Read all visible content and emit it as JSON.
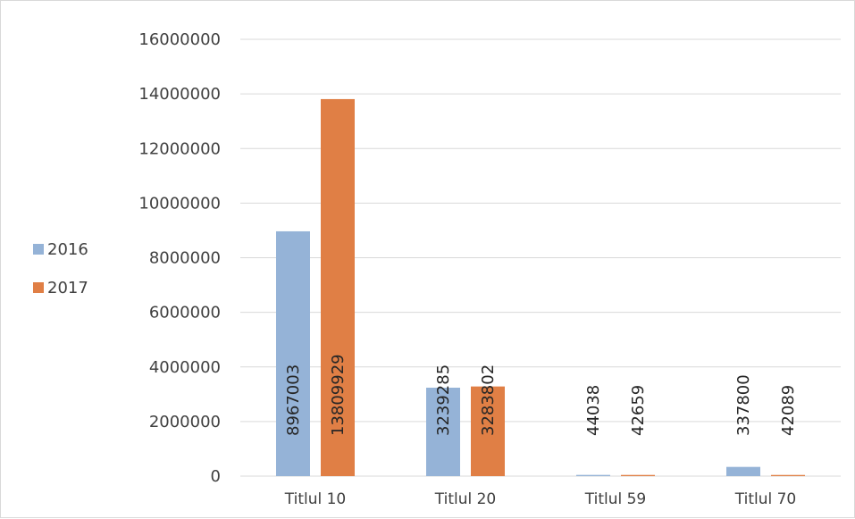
{
  "chart_data": {
    "type": "bar",
    "categories": [
      "Titlul 10",
      "Titlul 20",
      "Titlul 59",
      "Titlul 70"
    ],
    "series": [
      {
        "name": "2016",
        "color": "#95b3d7",
        "values": [
          8967003,
          3239285,
          44038,
          337800
        ]
      },
      {
        "name": "2017",
        "color": "#e07f45",
        "values": [
          13809929,
          3283802,
          42659,
          42089
        ]
      }
    ],
    "ylim": [
      0,
      16000000
    ],
    "yticks": [
      0,
      2000000,
      4000000,
      6000000,
      8000000,
      10000000,
      12000000,
      14000000,
      16000000
    ],
    "grid": true,
    "legend_position": "left",
    "data_labels": "vertical"
  }
}
